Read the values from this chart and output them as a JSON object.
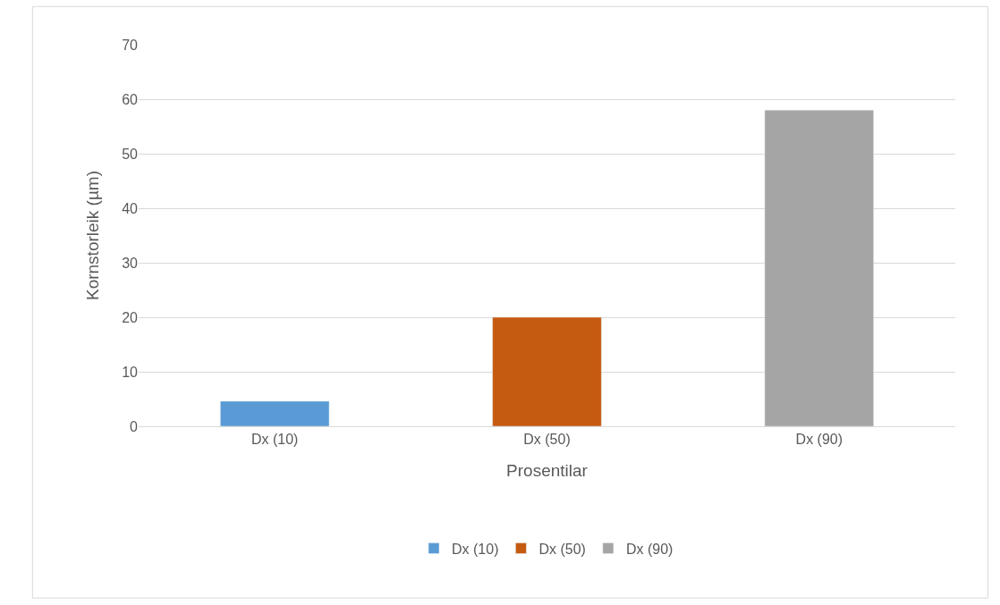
{
  "chart_data": {
    "type": "bar",
    "xlabel": "Prosentilar",
    "ylabel": "Kornstorleik (µm)",
    "categories": [
      "Dx (10)",
      "Dx (50)",
      "Dx (90)"
    ],
    "series": [
      {
        "name": "Dx (10)",
        "color": "#5b9bd5",
        "values": [
          4.6,
          null,
          null
        ]
      },
      {
        "name": "Dx (50)",
        "color": "#c55a11",
        "values": [
          null,
          20,
          null
        ]
      },
      {
        "name": "Dx (90)",
        "color": "#a5a5a5",
        "values": [
          null,
          null,
          58
        ]
      }
    ],
    "ylim": [
      0,
      70
    ],
    "yticks": [
      0,
      10,
      20,
      30,
      40,
      50,
      60,
      70
    ],
    "grid": "y",
    "legend": "bottom"
  }
}
